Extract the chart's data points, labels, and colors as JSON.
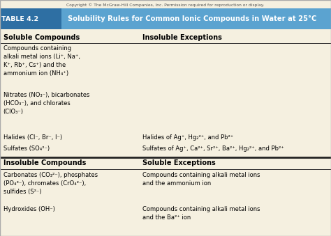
{
  "copyright": "Copyright © The McGraw-Hill Companies, Inc. Permission required for reproduction or display.",
  "table_label": "TABLE 4.2",
  "table_title": "  Solubility Rules for Common Ionic Compounds in Water at 25°C",
  "header_bg": "#5ba3d0",
  "label_bg": "#2e6fa3",
  "body_bg": "#f5f0e0",
  "border_color": "#aaaaaa",
  "col1_header": "Soluble Compounds",
  "col2_header": "Insoluble Exceptions",
  "col3_header": "Insoluble Compounds",
  "col4_header": "Soluble Exceptions",
  "col_split": 0.42,
  "figsize": [
    4.74,
    3.39
  ],
  "dpi": 100
}
